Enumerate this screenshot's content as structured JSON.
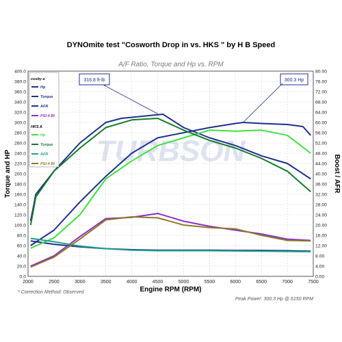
{
  "chart_data": {
    "type": "line",
    "title": "DYNOmite test \"Cosworth Drop in vs. HKS \" by H B Speed",
    "subtitle": "A/F Ratio, Torque and Hp vs. RPM",
    "xlabel": "Engine RPM (RPM)",
    "ylabel_left": "Torque and HP",
    "ylabel_right": "Boost / AFR",
    "xlim": [
      2000,
      7500
    ],
    "ylim_left": [
      0,
      400
    ],
    "ylim_right": [
      0,
      80
    ],
    "x_ticks": [
      "2000",
      "2500",
      "3000",
      "3500",
      "4000",
      "4500",
      "5000",
      "5500",
      "6000",
      "6500",
      "7000",
      "7500"
    ],
    "y_ticks_left": [
      "0.0",
      "20.0",
      "40.0",
      "60.0",
      "80.0",
      "100.0",
      "120.0",
      "140.0",
      "160.0",
      "180.0",
      "200.0",
      "220.0",
      "240.0",
      "260.0",
      "280.0",
      "300.0",
      "320.0",
      "340.0",
      "360.0",
      "380.0",
      "400.0"
    ],
    "y_ticks_right": [
      "0.00",
      "4.00",
      "8.00",
      "12.00",
      "16.00",
      "20.00",
      "24.00",
      "28.00",
      "32.00",
      "36.00",
      "40.00",
      "44.00",
      "48.00",
      "52.00",
      "56.00",
      "60.00",
      "64.00",
      "68.00",
      "72.00",
      "76.00",
      "80.00"
    ],
    "grid": true,
    "legend_groups": [
      {
        "label": "cosby a",
        "items": [
          "Hp",
          "Torque",
          "AFR",
          "PSI-4 Bt"
        ]
      },
      {
        "label": "HKS A",
        "items": [
          "Hp",
          "Torque",
          "AFR",
          "PSI-4 Bt"
        ]
      }
    ],
    "series": [
      {
        "name": "Hp",
        "group": "cosby a",
        "axis": "left",
        "color": "#1f2f8c",
        "x": [
          2050,
          2500,
          3000,
          3500,
          4000,
          4500,
          5000,
          5500,
          6000,
          6150,
          6500,
          7000,
          7300,
          7450
        ],
        "y": [
          60,
          90,
          145,
          195,
          240,
          270,
          280,
          290,
          298,
          300,
          298,
          296,
          292,
          275
        ]
      },
      {
        "name": "Torque",
        "group": "cosby a",
        "axis": "left",
        "color": "#1f2f8c",
        "x": [
          2050,
          2150,
          2500,
          3000,
          3500,
          3800,
          4200,
          4600,
          5000,
          5500,
          6000,
          6500,
          7000,
          7450
        ],
        "y": [
          108,
          160,
          205,
          260,
          300,
          308,
          312,
          316,
          290,
          270,
          255,
          235,
          220,
          190
        ]
      },
      {
        "name": "AFR",
        "group": "cosby a",
        "axis": "right",
        "color": "#1f2f8c",
        "x": [
          2050,
          2500,
          3000,
          3500,
          4000,
          4500,
          5000,
          5500,
          6000,
          6500,
          7000,
          7450
        ],
        "y": [
          13.8,
          12.5,
          11.5,
          10.8,
          10.4,
          10.2,
          10.2,
          10.2,
          10.1,
          10.1,
          10.0,
          9.8
        ]
      },
      {
        "name": "PSI-4 Bt",
        "group": "cosby a",
        "axis": "right",
        "color": "#8b2fc9",
        "x": [
          2050,
          2500,
          3000,
          3500,
          4000,
          4500,
          5000,
          5500,
          6000,
          6500,
          7000,
          7450
        ],
        "y": [
          4.0,
          8.0,
          15.5,
          22.5,
          23.0,
          24.5,
          21.5,
          19.5,
          18.0,
          16.5,
          14.5,
          14.0
        ]
      },
      {
        "name": "Hp",
        "group": "HKS A",
        "axis": "left",
        "color": "#3ee03e",
        "x": [
          2050,
          2500,
          3000,
          3500,
          4000,
          4500,
          5000,
          5500,
          6000,
          6500,
          7000,
          7450
        ],
        "y": [
          55,
          75,
          120,
          190,
          225,
          255,
          270,
          285,
          283,
          285,
          275,
          240
        ]
      },
      {
        "name": "Torque",
        "group": "HKS A",
        "axis": "left",
        "color": "#147a2a",
        "x": [
          2050,
          2150,
          2500,
          3000,
          3500,
          4000,
          4500,
          5000,
          5500,
          6000,
          6500,
          7000,
          7450
        ],
        "y": [
          100,
          155,
          205,
          250,
          290,
          305,
          308,
          285,
          265,
          250,
          230,
          205,
          165
        ]
      },
      {
        "name": "AFR",
        "group": "HKS A",
        "axis": "right",
        "color": "#1aa08a",
        "x": [
          2050,
          2500,
          3000,
          3500,
          4000,
          4500,
          5000,
          5500,
          6000,
          6500,
          7000,
          7450
        ],
        "y": [
          14.8,
          13.5,
          11.8,
          10.8,
          10.2,
          10.0,
          10.0,
          10.0,
          9.9,
          9.8,
          9.7,
          9.6
        ]
      },
      {
        "name": "PSI-4 Bt",
        "group": "HKS A",
        "axis": "right",
        "color": "#8a7a2a",
        "x": [
          2050,
          2500,
          3000,
          3500,
          4000,
          4500,
          5000,
          5500,
          6000,
          6500,
          7000,
          7450
        ],
        "y": [
          3.6,
          7.5,
          14.5,
          22.0,
          23.2,
          22.8,
          20.0,
          19.0,
          18.5,
          16.0,
          14.0,
          13.8
        ]
      }
    ],
    "annotations": [
      {
        "text": "316.8 ft-lb",
        "x": 4500,
        "y": 316.8,
        "axis": "left"
      },
      {
        "text": "300.3 Hp",
        "x": 6150,
        "y": 300.3,
        "axis": "left"
      }
    ],
    "watermark": "TURBSON"
  },
  "footnote": "* Correction Method: Observed",
  "peak_note": "Peak Power: 300.3 Hp @ 6150 RPM"
}
